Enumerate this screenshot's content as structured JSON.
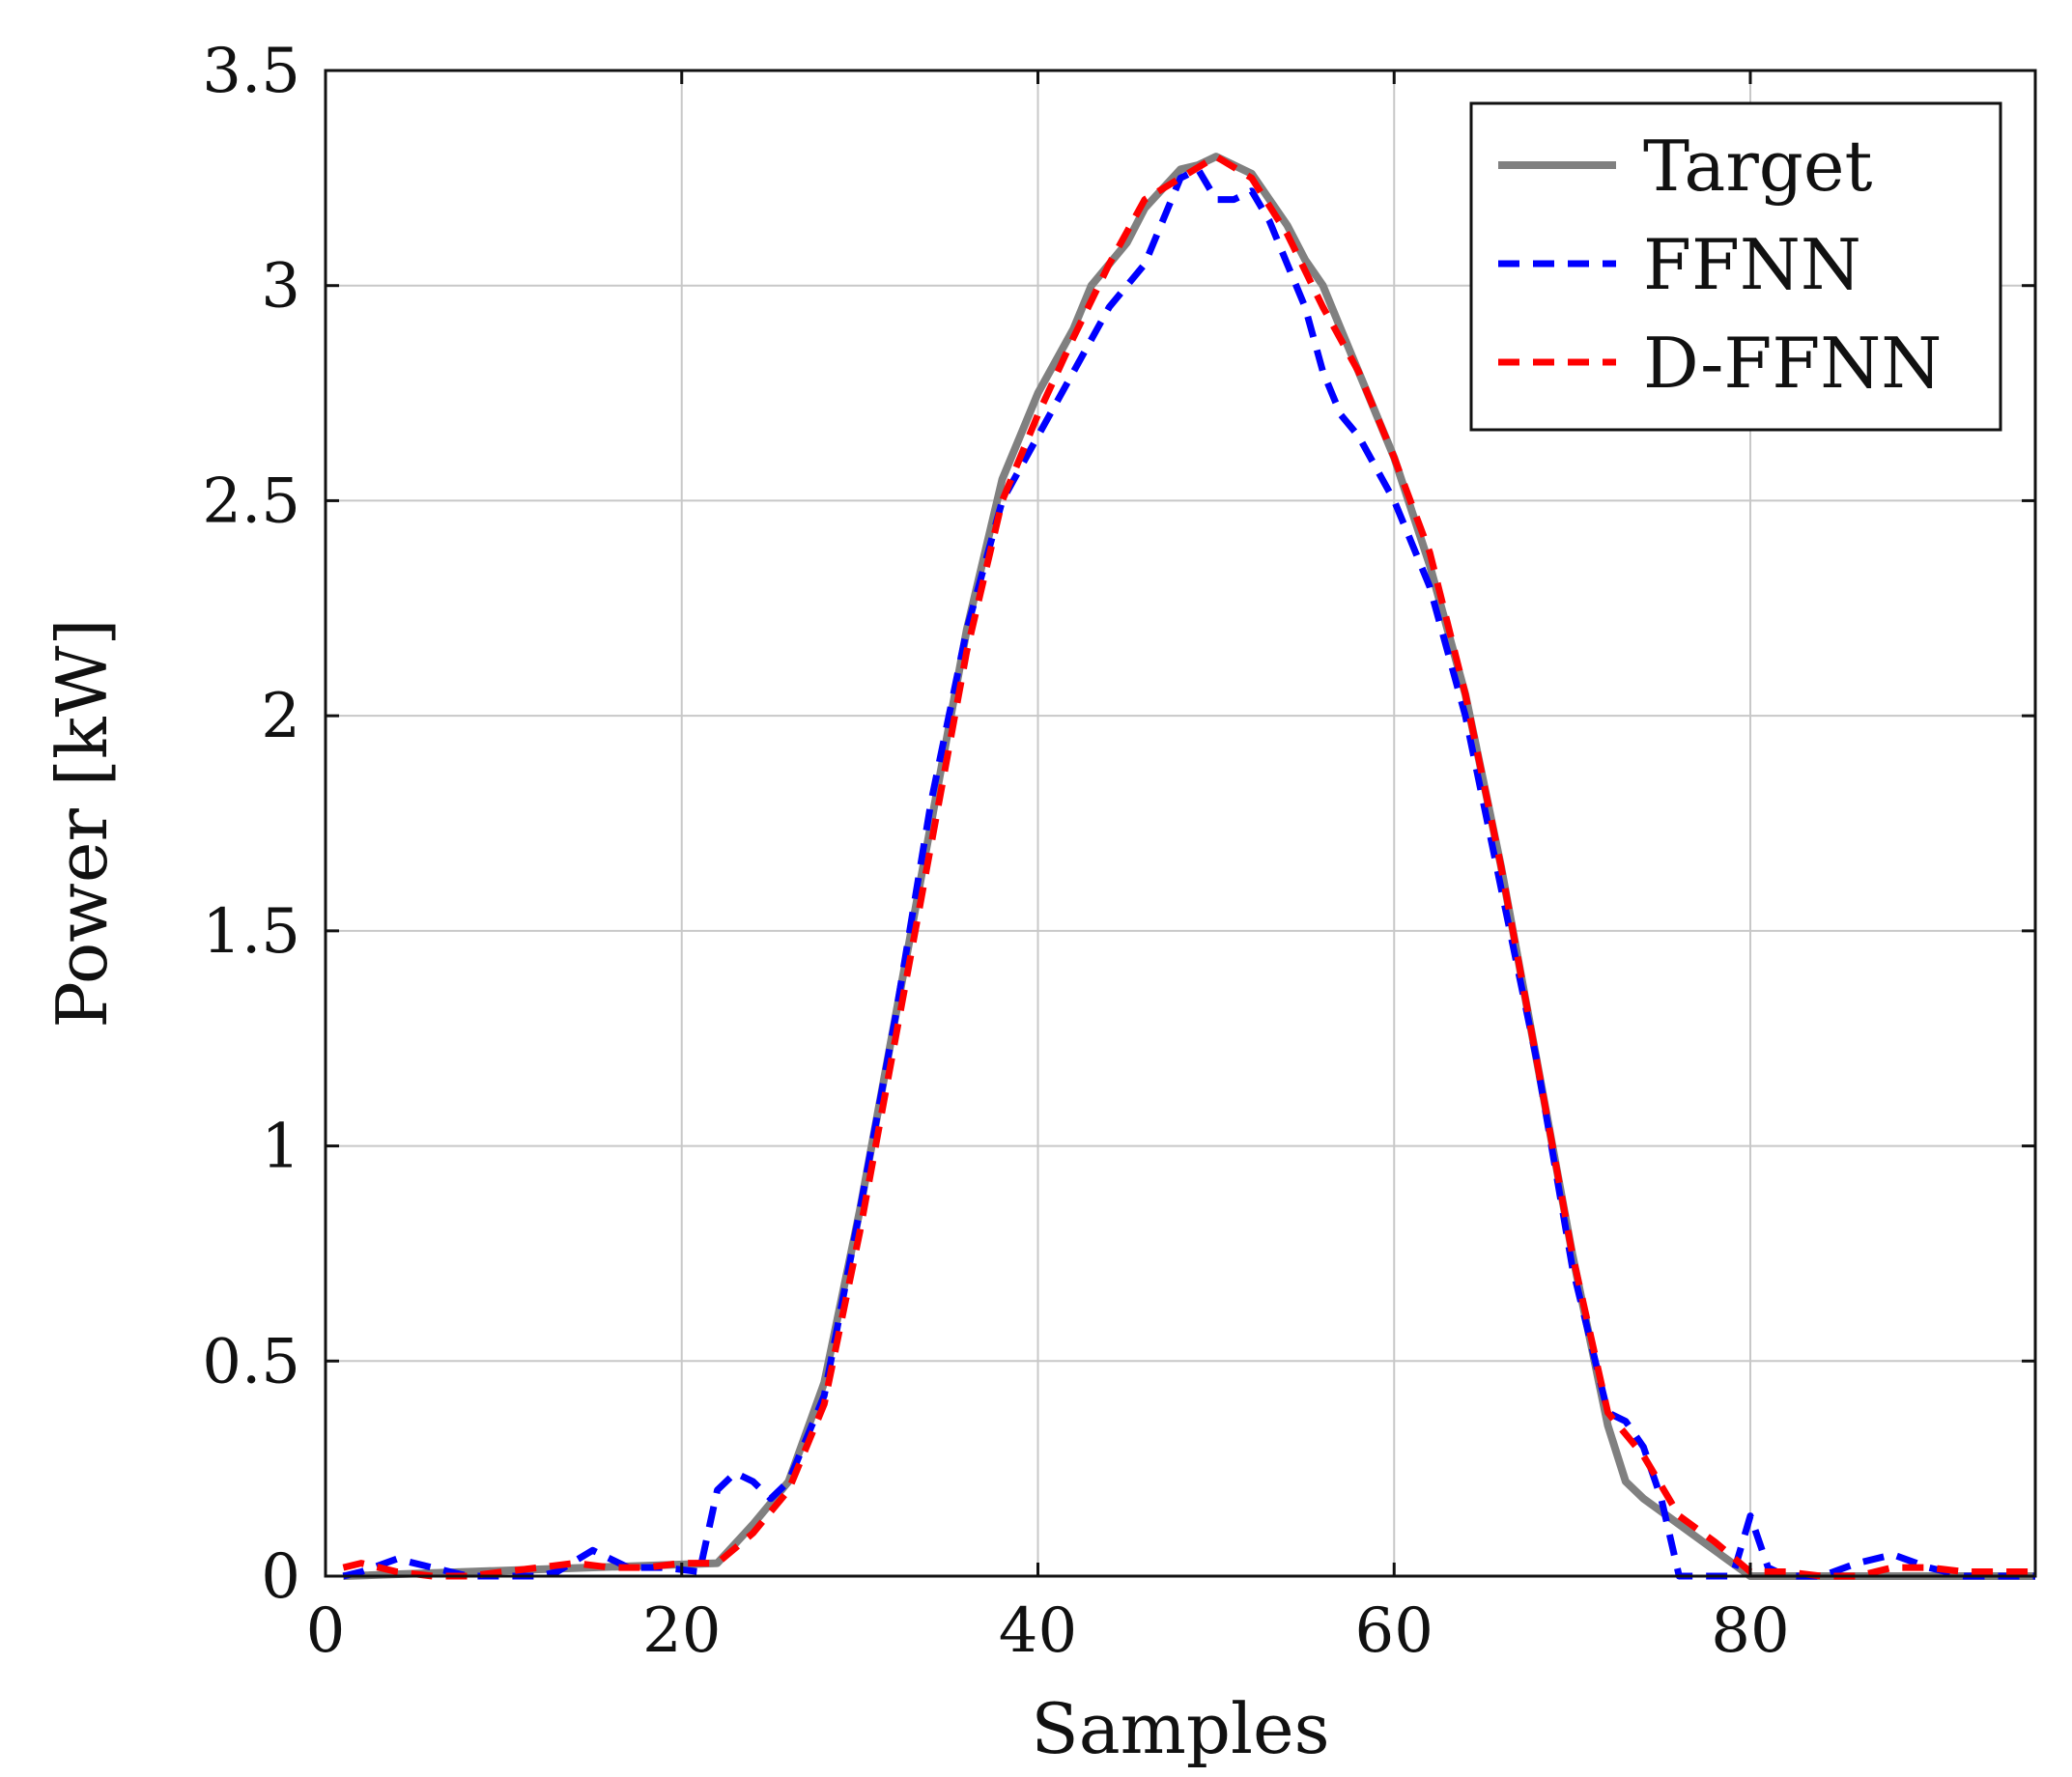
{
  "chart_data": {
    "type": "line",
    "xlabel": "Samples",
    "ylabel": "Power [kW]",
    "xlim": [
      0,
      96
    ],
    "ylim": [
      0,
      3.5
    ],
    "grid": true,
    "legend_position": "top-right",
    "x_ticks": [
      0,
      20,
      40,
      60,
      80
    ],
    "x_tick_labels": [
      "0",
      "20",
      "40",
      "60",
      "80"
    ],
    "y_ticks": [
      0,
      0.5,
      1,
      1.5,
      2,
      2.5,
      3,
      3.5
    ],
    "y_tick_labels": [
      "0",
      "0.5",
      "1",
      "1.5",
      "2",
      "2.5",
      "3",
      "3.5"
    ],
    "series": [
      {
        "name": "Target",
        "color": "#808080",
        "dash": "solid",
        "x": [
          1,
          22,
          24,
          26,
          28,
          30,
          32,
          34,
          36,
          38,
          39,
          40,
          42,
          43,
          44,
          45,
          46,
          48,
          49,
          50,
          51,
          52,
          53,
          54,
          55,
          56,
          57,
          58,
          60,
          62,
          64,
          66,
          68,
          70,
          72,
          73,
          74,
          76,
          78,
          80,
          82,
          84,
          86,
          88,
          90,
          92,
          94,
          96
        ],
        "y": [
          0,
          0.03,
          0.12,
          0.22,
          0.45,
          0.85,
          1.3,
          1.75,
          2.2,
          2.55,
          2.65,
          2.75,
          2.9,
          3.0,
          3.05,
          3.1,
          3.18,
          3.27,
          3.28,
          3.3,
          3.28,
          3.26,
          3.2,
          3.14,
          3.06,
          3.0,
          2.9,
          2.8,
          2.6,
          2.35,
          2.05,
          1.65,
          1.2,
          0.75,
          0.35,
          0.22,
          0.18,
          0.12,
          0.06,
          0,
          0,
          0,
          0,
          0,
          0,
          0,
          0,
          0
        ]
      },
      {
        "name": "FFNN",
        "color": "#0000ff",
        "dash": "dashed",
        "x": [
          1,
          2,
          4,
          6,
          8,
          10,
          12,
          13,
          15,
          17,
          19,
          21,
          22,
          23,
          24,
          25,
          26,
          28,
          30,
          32,
          34,
          36,
          38,
          40,
          42,
          44,
          46,
          47,
          48,
          49,
          50,
          51,
          52,
          53,
          54,
          55,
          56,
          57,
          58,
          60,
          62,
          64,
          66,
          68,
          70,
          72,
          73,
          74,
          75,
          76,
          77,
          78,
          79,
          80,
          81,
          82,
          84,
          86,
          88,
          90,
          92,
          94,
          96
        ],
        "y": [
          0,
          0.01,
          0.04,
          0.02,
          0,
          0,
          0,
          0.01,
          0.06,
          0.02,
          0.02,
          0.01,
          0.2,
          0.24,
          0.22,
          0.18,
          0.22,
          0.42,
          0.85,
          1.3,
          1.8,
          2.2,
          2.5,
          2.65,
          2.8,
          2.95,
          3.05,
          3.15,
          3.25,
          3.27,
          3.2,
          3.2,
          3.22,
          3.15,
          3.05,
          2.95,
          2.8,
          2.7,
          2.65,
          2.5,
          2.3,
          2.0,
          1.6,
          1.2,
          0.72,
          0.38,
          0.36,
          0.3,
          0.18,
          0,
          0,
          0,
          0,
          0.14,
          0.02,
          0,
          0,
          0.03,
          0.05,
          0.02,
          0,
          0,
          0
        ]
      },
      {
        "name": "D-FFNN",
        "color": "#ff0000",
        "dash": "dashed",
        "x": [
          1,
          2,
          4,
          6,
          8,
          10,
          12,
          14,
          16,
          18,
          20,
          22,
          24,
          26,
          28,
          30,
          32,
          34,
          36,
          38,
          40,
          42,
          44,
          46,
          48,
          50,
          52,
          54,
          56,
          58,
          60,
          62,
          64,
          66,
          68,
          70,
          72,
          74,
          76,
          78,
          80,
          82,
          84,
          86,
          88,
          90,
          92,
          94,
          96
        ],
        "y": [
          0.02,
          0.03,
          0.01,
          0,
          0,
          0.01,
          0.02,
          0.03,
          0.02,
          0.02,
          0.03,
          0.03,
          0.1,
          0.2,
          0.4,
          0.8,
          1.25,
          1.7,
          2.15,
          2.5,
          2.7,
          2.88,
          3.05,
          3.2,
          3.25,
          3.3,
          3.25,
          3.12,
          2.95,
          2.8,
          2.6,
          2.38,
          2.05,
          1.65,
          1.2,
          0.75,
          0.38,
          0.28,
          0.14,
          0.08,
          0.01,
          0.01,
          0,
          0,
          0.02,
          0.02,
          0.01,
          0.01,
          0.01
        ]
      }
    ]
  }
}
